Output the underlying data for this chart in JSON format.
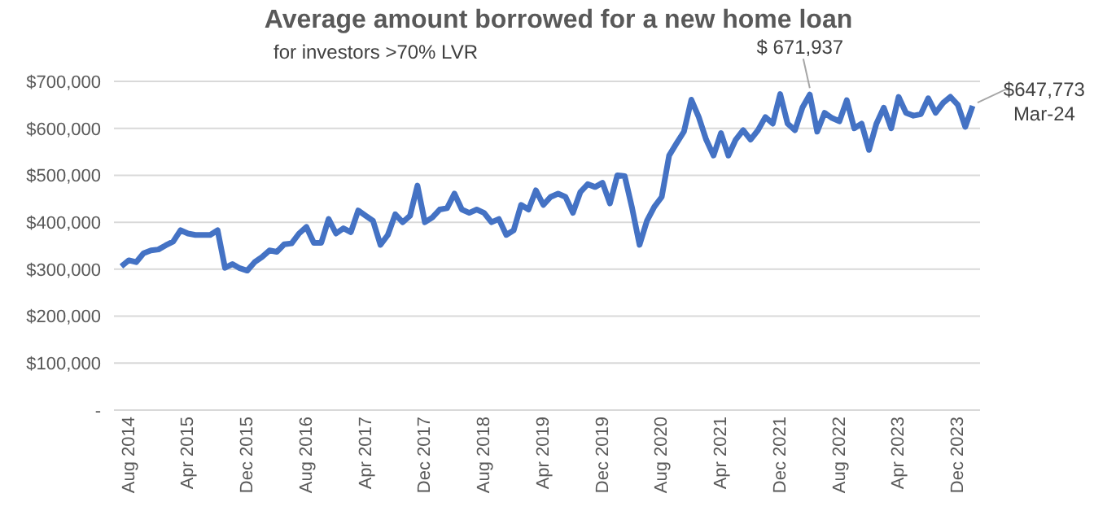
{
  "chart_data": {
    "type": "line",
    "title": "Average amount borrowed for a new home loan",
    "subtitle": "for investors >70% LVR",
    "x": [
      "2014-08",
      "2014-09",
      "2014-10",
      "2014-11",
      "2014-12",
      "2015-01",
      "2015-02",
      "2015-03",
      "2015-04",
      "2015-05",
      "2015-06",
      "2015-07",
      "2015-08",
      "2015-09",
      "2015-10",
      "2015-11",
      "2015-12",
      "2016-01",
      "2016-02",
      "2016-03",
      "2016-04",
      "2016-05",
      "2016-06",
      "2016-07",
      "2016-08",
      "2016-09",
      "2016-10",
      "2016-11",
      "2016-12",
      "2017-01",
      "2017-02",
      "2017-03",
      "2017-04",
      "2017-05",
      "2017-06",
      "2017-07",
      "2017-08",
      "2017-09",
      "2017-10",
      "2017-11",
      "2017-12",
      "2018-01",
      "2018-02",
      "2018-03",
      "2018-04",
      "2018-05",
      "2018-06",
      "2018-07",
      "2018-08",
      "2018-09",
      "2018-10",
      "2018-11",
      "2018-12",
      "2019-01",
      "2019-02",
      "2019-03",
      "2019-04",
      "2019-05",
      "2019-06",
      "2019-07",
      "2019-08",
      "2019-09",
      "2019-10",
      "2019-11",
      "2019-12",
      "2020-01",
      "2020-02",
      "2020-03",
      "2020-04",
      "2020-05",
      "2020-06",
      "2020-07",
      "2020-08",
      "2020-09",
      "2020-10",
      "2020-11",
      "2020-12",
      "2021-01",
      "2021-02",
      "2021-03",
      "2021-04",
      "2021-05",
      "2021-06",
      "2021-07",
      "2021-08",
      "2021-09",
      "2021-10",
      "2021-11",
      "2021-12",
      "2022-01",
      "2022-02",
      "2022-03",
      "2022-04",
      "2022-05",
      "2022-06",
      "2022-07",
      "2022-08",
      "2022-09",
      "2022-10",
      "2022-11",
      "2022-12",
      "2023-01",
      "2023-02",
      "2023-03",
      "2023-04",
      "2023-05",
      "2023-06",
      "2023-07",
      "2023-08",
      "2023-09",
      "2023-10",
      "2023-11",
      "2023-12",
      "2024-01",
      "2024-02",
      "2024-03"
    ],
    "series": [
      {
        "color": "#4472c4",
        "values": [
          306000,
          319000,
          315000,
          334000,
          340000,
          342000,
          351000,
          359000,
          383000,
          376000,
          373000,
          373000,
          373000,
          383000,
          303000,
          311000,
          302000,
          297000,
          315000,
          326000,
          340000,
          337000,
          353000,
          355000,
          376000,
          390000,
          356000,
          356000,
          407000,
          376000,
          387000,
          379000,
          425000,
          414000,
          403000,
          352000,
          373000,
          417000,
          400000,
          414000,
          478000,
          400000,
          410000,
          427000,
          430000,
          461000,
          427000,
          420000,
          427000,
          420000,
          400000,
          407000,
          373000,
          383000,
          437000,
          427000,
          468000,
          437000,
          454000,
          461000,
          454000,
          420000,
          464000,
          481000,
          475000,
          484000,
          440000,
          500000,
          498000,
          430000,
          352000,
          403000,
          433000,
          454000,
          542000,
          568000,
          593000,
          661000,
          624000,
          576000,
          542000,
          590000,
          542000,
          576000,
          596000,
          576000,
          596000,
          624000,
          610000,
          673000,
          610000,
          596000,
          644000,
          671937,
          593000,
          633000,
          622000,
          615000,
          660000,
          600000,
          610000,
          554000,
          610000,
          644000,
          600000,
          667000,
          633000,
          627000,
          630000,
          664000,
          633000,
          654000,
          667000,
          650000,
          603000,
          647773
        ]
      }
    ],
    "xlim": [
      "2014-07",
      "2024-04"
    ],
    "xticks": [
      {
        "value": "2014-08",
        "label": "Aug 2014"
      },
      {
        "value": "2015-04",
        "label": "Apr 2015"
      },
      {
        "value": "2015-12",
        "label": "Dec 2015"
      },
      {
        "value": "2016-08",
        "label": "Aug 2016"
      },
      {
        "value": "2017-04",
        "label": "Apr 2017"
      },
      {
        "value": "2017-12",
        "label": "Dec 2017"
      },
      {
        "value": "2018-08",
        "label": "Aug 2018"
      },
      {
        "value": "2019-04",
        "label": "Apr 2019"
      },
      {
        "value": "2019-12",
        "label": "Dec 2019"
      },
      {
        "value": "2020-08",
        "label": "Aug 2020"
      },
      {
        "value": "2021-04",
        "label": "Apr 2021"
      },
      {
        "value": "2021-12",
        "label": "Dec 2021"
      },
      {
        "value": "2022-08",
        "label": "Aug 2022"
      },
      {
        "value": "2023-04",
        "label": "Apr 2023"
      },
      {
        "value": "2023-12",
        "label": "Dec 2023"
      }
    ],
    "ylim": [
      0,
      700000
    ],
    "yticks": [
      {
        "value": 0,
        "label": "-"
      },
      {
        "value": 100000,
        "label": "$100,000"
      },
      {
        "value": 200000,
        "label": "$200,000"
      },
      {
        "value": 300000,
        "label": "$300,000"
      },
      {
        "value": 400000,
        "label": "$400,000"
      },
      {
        "value": 500000,
        "label": "$500,000"
      },
      {
        "value": 600000,
        "label": "$600,000"
      },
      {
        "value": 700000,
        "label": "$700,000"
      }
    ],
    "grid": "y",
    "legend": false,
    "marker": "none",
    "line_style": "solid",
    "annotations": [
      {
        "text": "$ 671,937",
        "x": "2022-05",
        "y": 671937
      },
      {
        "text": "$647,773\nMar-24",
        "x": "2024-03",
        "y": 647773
      }
    ]
  }
}
